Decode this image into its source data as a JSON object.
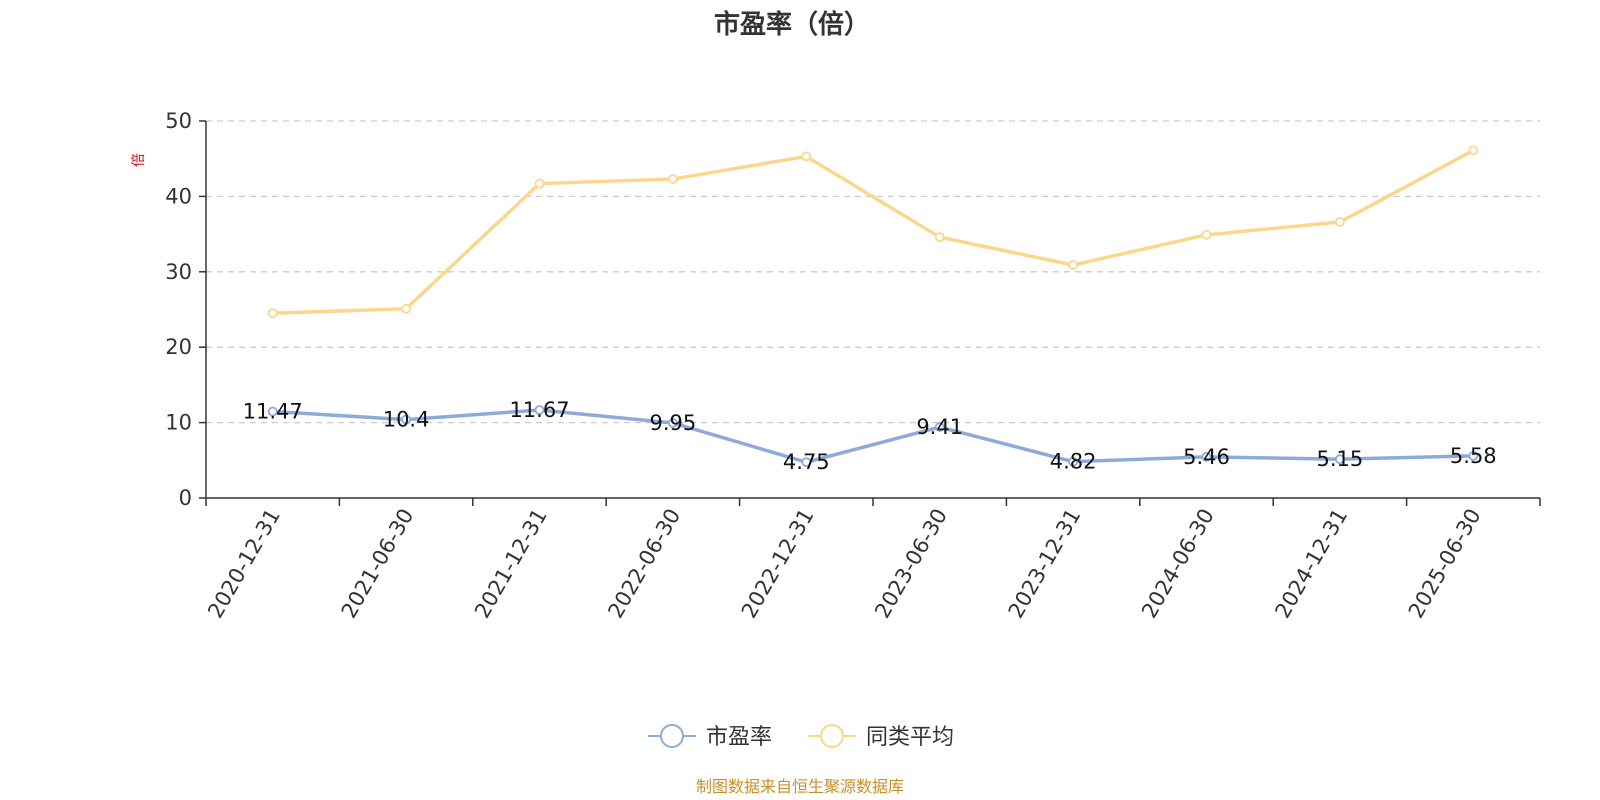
{
  "chart_data": {
    "type": "line",
    "title": "市盈率（倍）",
    "y_unit": "倍",
    "ylim": [
      0,
      50
    ],
    "y_ticks": [
      0,
      10,
      20,
      30,
      40,
      50
    ],
    "grid": true,
    "legend_position": "bottom",
    "categories": [
      "2020-12-31",
      "2021-06-30",
      "2021-12-31",
      "2022-06-30",
      "2022-12-31",
      "2023-06-30",
      "2023-12-31",
      "2024-06-30",
      "2024-12-31",
      "2025-06-30"
    ],
    "series": [
      {
        "name": "市盈率",
        "color": "#8eaadb",
        "values": [
          11.47,
          10.4,
          11.67,
          9.95,
          4.75,
          9.41,
          4.82,
          5.46,
          5.15,
          5.58
        ],
        "labels": [
          "11.47",
          "10.4",
          "11.67",
          "9.95",
          "4.75",
          "9.41",
          "4.82",
          "5.46",
          "5.15",
          "5.58"
        ],
        "show_labels": true
      },
      {
        "name": "同类平均",
        "color": "#fbd78e",
        "values": [
          24.5,
          25.1,
          41.7,
          42.3,
          45.3,
          34.6,
          30.9,
          34.9,
          36.6,
          46.1
        ],
        "show_labels": false
      }
    ]
  },
  "source_note": "制图数据来自恒生聚源数据库"
}
